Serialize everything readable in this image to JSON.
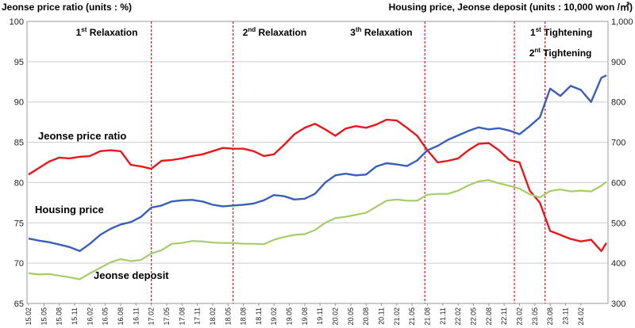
{
  "chart_data": {
    "type": "line",
    "left_axis_title": "Jeonse price ratio (units : %)",
    "right_axis_title": "Housing price, Jeonse deposit (units : 10,000 won /㎡)",
    "y_left": {
      "min": 65,
      "max": 100,
      "ticks": [
        65,
        70,
        75,
        80,
        85,
        90,
        95,
        100
      ]
    },
    "y_right": {
      "min": 300,
      "max": 1000,
      "ticks": [
        "300",
        "400",
        "500",
        "600",
        "700",
        "800",
        "900",
        "1,000"
      ]
    },
    "x_labels": [
      "15.02",
      "15.05",
      "15.08",
      "15.11",
      "16.02",
      "16.05",
      "16.08",
      "16.11",
      "17.02",
      "17.05",
      "17.08",
      "17.11",
      "18.02",
      "18.05",
      "18.08",
      "18.11",
      "19.02",
      "19.05",
      "19.08",
      "19.11",
      "20.02",
      "20.05",
      "20.08",
      "20.11",
      "21.02",
      "21.05",
      "21.08",
      "21.11",
      "22.02",
      "22.05",
      "22.08",
      "22.11",
      "23.02",
      "23.05",
      "23.08",
      "23.11",
      "24.02"
    ],
    "events": [
      {
        "num": "1",
        "sup": "st",
        "text": " Relaxation",
        "x": 24.0
      },
      {
        "num": "2",
        "sup": "nd",
        "text": " Relaxation",
        "x": 40.0
      },
      {
        "num": "3",
        "sup": "th",
        "text": " Relaxation",
        "x": 77.5
      },
      {
        "num": "1",
        "sup": "st",
        "text": " Tightening",
        "x": 95.0
      },
      {
        "num": "2",
        "sup": "nt",
        "text": " Tightening",
        "x": 101.0
      }
    ],
    "series_labels": {
      "ratio": "Jeonse price ratio",
      "housing": "Housing price",
      "deposit": "Jeonse deposit"
    },
    "colors": {
      "ratio": "#e8171c",
      "housing": "#3a5fb8",
      "deposit": "#a6cc6a",
      "event_line": "#e8171c",
      "grid": "#cccccc"
    },
    "series": [
      {
        "key": "ratio",
        "axis": "left",
        "start_x": 0,
        "points": [
          [
            0,
            81.0
          ],
          [
            2,
            81.8
          ],
          [
            4,
            82.6
          ],
          [
            6,
            83.1
          ],
          [
            8,
            83.0
          ],
          [
            10,
            83.2
          ],
          [
            12,
            83.3
          ],
          [
            14,
            83.9
          ],
          [
            16,
            84.0
          ],
          [
            18,
            83.9
          ],
          [
            20,
            82.2
          ],
          [
            22,
            82.0
          ],
          [
            24,
            81.7
          ],
          [
            26,
            82.7
          ],
          [
            28,
            82.8
          ],
          [
            30,
            83.0
          ],
          [
            32,
            83.3
          ],
          [
            34,
            83.5
          ],
          [
            36,
            83.9
          ],
          [
            38,
            84.3
          ],
          [
            40,
            84.2
          ],
          [
            42,
            84.2
          ],
          [
            44,
            83.9
          ],
          [
            46,
            83.3
          ],
          [
            48,
            83.5
          ],
          [
            50,
            84.7
          ],
          [
            52,
            86.0
          ],
          [
            54,
            86.8
          ],
          [
            56,
            87.3
          ],
          [
            58,
            86.6
          ],
          [
            60,
            85.8
          ],
          [
            62,
            86.7
          ],
          [
            64,
            87.0
          ],
          [
            66,
            86.8
          ],
          [
            68,
            87.2
          ],
          [
            70,
            87.8
          ],
          [
            72,
            87.7
          ],
          [
            74,
            86.8
          ],
          [
            76,
            85.8
          ],
          [
            78,
            84.0
          ],
          [
            80,
            82.5
          ],
          [
            82,
            82.7
          ],
          [
            84,
            83.0
          ],
          [
            86,
            84.0
          ],
          [
            88,
            84.8
          ],
          [
            90,
            84.9
          ],
          [
            92,
            84.0
          ],
          [
            94,
            82.8
          ],
          [
            96,
            82.5
          ],
          [
            98,
            79.0
          ],
          [
            100,
            77.5
          ],
          [
            102,
            74.0
          ],
          [
            104,
            73.5
          ],
          [
            106,
            73.0
          ],
          [
            108,
            72.7
          ],
          [
            110,
            72.9
          ],
          [
            112,
            71.5
          ],
          [
            113,
            72.5
          ]
        ]
      },
      {
        "key": "housing",
        "axis": "right",
        "start_x": 0,
        "points": [
          [
            0,
            461
          ],
          [
            2,
            456
          ],
          [
            4,
            452
          ],
          [
            6,
            446
          ],
          [
            8,
            440
          ],
          [
            10,
            430
          ],
          [
            12,
            448
          ],
          [
            14,
            470
          ],
          [
            16,
            485
          ],
          [
            18,
            496
          ],
          [
            20,
            502
          ],
          [
            22,
            515
          ],
          [
            24,
            538
          ],
          [
            26,
            543
          ],
          [
            28,
            553
          ],
          [
            30,
            556
          ],
          [
            32,
            557
          ],
          [
            34,
            553
          ],
          [
            36,
            545
          ],
          [
            38,
            541
          ],
          [
            40,
            543
          ],
          [
            42,
            545
          ],
          [
            44,
            548
          ],
          [
            46,
            556
          ],
          [
            48,
            569
          ],
          [
            50,
            566
          ],
          [
            52,
            558
          ],
          [
            54,
            560
          ],
          [
            56,
            572
          ],
          [
            58,
            600
          ],
          [
            60,
            618
          ],
          [
            62,
            622
          ],
          [
            64,
            618
          ],
          [
            66,
            620
          ],
          [
            68,
            640
          ],
          [
            70,
            648
          ],
          [
            72,
            645
          ],
          [
            74,
            641
          ],
          [
            76,
            655
          ],
          [
            78,
            680
          ],
          [
            80,
            691
          ],
          [
            82,
            706
          ],
          [
            84,
            717
          ],
          [
            86,
            728
          ],
          [
            88,
            737
          ],
          [
            90,
            732
          ],
          [
            92,
            735
          ],
          [
            94,
            729
          ],
          [
            96,
            720
          ],
          [
            98,
            740
          ],
          [
            100,
            762
          ],
          [
            102,
            833
          ],
          [
            104,
            815
          ],
          [
            106,
            840
          ],
          [
            108,
            830
          ],
          [
            110,
            800
          ],
          [
            112,
            860
          ],
          [
            113,
            866
          ]
        ]
      },
      {
        "key": "deposit",
        "axis": "right",
        "start_x": 0,
        "points": [
          [
            0,
            375
          ],
          [
            2,
            372
          ],
          [
            4,
            373
          ],
          [
            6,
            369
          ],
          [
            8,
            365
          ],
          [
            10,
            360
          ],
          [
            12,
            375
          ],
          [
            14,
            388
          ],
          [
            16,
            402
          ],
          [
            18,
            410
          ],
          [
            20,
            405
          ],
          [
            22,
            408
          ],
          [
            24,
            424
          ],
          [
            26,
            432
          ],
          [
            28,
            448
          ],
          [
            30,
            450
          ],
          [
            32,
            455
          ],
          [
            34,
            454
          ],
          [
            36,
            451
          ],
          [
            38,
            450
          ],
          [
            40,
            450
          ],
          [
            42,
            448
          ],
          [
            44,
            448
          ],
          [
            46,
            447
          ],
          [
            48,
            458
          ],
          [
            50,
            465
          ],
          [
            52,
            470
          ],
          [
            54,
            472
          ],
          [
            56,
            482
          ],
          [
            58,
            500
          ],
          [
            60,
            512
          ],
          [
            62,
            515
          ],
          [
            64,
            520
          ],
          [
            66,
            525
          ],
          [
            68,
            540
          ],
          [
            70,
            555
          ],
          [
            72,
            558
          ],
          [
            74,
            555
          ],
          [
            76,
            555
          ],
          [
            78,
            570
          ],
          [
            80,
            572
          ],
          [
            82,
            572
          ],
          [
            84,
            580
          ],
          [
            86,
            593
          ],
          [
            88,
            603
          ],
          [
            90,
            606
          ],
          [
            92,
            598
          ],
          [
            94,
            592
          ],
          [
            96,
            585
          ],
          [
            98,
            571
          ],
          [
            100,
            563
          ],
          [
            102,
            579
          ],
          [
            104,
            583
          ],
          [
            106,
            578
          ],
          [
            108,
            580
          ],
          [
            110,
            578
          ],
          [
            112,
            592
          ],
          [
            113,
            602
          ]
        ]
      }
    ]
  }
}
